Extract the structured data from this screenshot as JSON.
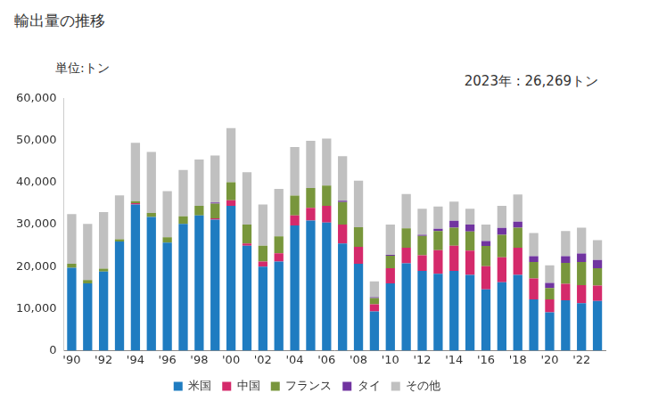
{
  "chart_data": {
    "type": "bar",
    "title": "輸出量の推移",
    "ylabel": "単位:トン",
    "annotations": [
      "2023年 : 26,269トン"
    ],
    "stacked": true,
    "grid": false,
    "legend": "bottom",
    "categories": [
      "'90",
      null,
      "'92",
      null,
      "'94",
      null,
      "'96",
      null,
      "'98",
      null,
      "'00",
      null,
      "'02",
      null,
      "'04",
      null,
      "'06",
      null,
      "'08",
      null,
      "'10",
      null,
      "'12",
      null,
      "'14",
      null,
      "'16",
      null,
      "'18",
      null,
      "'20",
      null,
      "'22",
      null
    ],
    "series": [
      {
        "name": "米国",
        "color": "#1f7cc1",
        "values": [
          19700,
          16000,
          18800,
          26000,
          34800,
          31800,
          25700,
          30200,
          32200,
          31200,
          34500,
          25000,
          20000,
          21200,
          29800,
          31000,
          30500,
          25500,
          20700,
          9300,
          16000,
          20800,
          19000,
          18300,
          19000,
          18000,
          14600,
          16300,
          18000,
          12200,
          9100,
          12000,
          11300,
          11800
        ]
      },
      {
        "name": "中国",
        "color": "#d42a6b",
        "values": [
          0,
          0,
          0,
          0,
          300,
          0,
          0,
          0,
          0,
          300,
          1300,
          500,
          1200,
          2000,
          2400,
          3000,
          4000,
          4500,
          4000,
          1700,
          3600,
          3700,
          3700,
          5600,
          6000,
          5800,
          5500,
          5900,
          6500,
          5000,
          3100,
          3900,
          4300,
          3700
        ]
      },
      {
        "name": "フランス",
        "color": "#78963c",
        "values": [
          1000,
          800,
          700,
          500,
          500,
          1000,
          1300,
          1800,
          2300,
          3500,
          4300,
          4500,
          3800,
          4000,
          4700,
          4700,
          4800,
          5400,
          4700,
          1500,
          3000,
          4600,
          4600,
          4600,
          4300,
          4600,
          4800,
          5400,
          4800,
          3900,
          2700,
          5000,
          5500,
          4100
        ]
      },
      {
        "name": "タイ",
        "color": "#7134a0",
        "values": [
          0,
          0,
          0,
          0,
          0,
          0,
          0,
          0,
          0,
          300,
          0,
          0,
          0,
          0,
          0,
          0,
          0,
          300,
          0,
          200,
          200,
          0,
          300,
          500,
          1600,
          1600,
          1200,
          1600,
          1400,
          1400,
          1200,
          1600,
          2000,
          2000
        ]
      },
      {
        "name": "その他",
        "color": "#c0c0c0",
        "values": [
          11800,
          13400,
          13500,
          10500,
          13900,
          14500,
          11000,
          11000,
          11000,
          11200,
          12900,
          12500,
          9800,
          11300,
          11600,
          11300,
          11200,
          10600,
          11100,
          3800,
          7200,
          8200,
          6200,
          5300,
          4600,
          3800,
          3900,
          5300,
          6500,
          5500,
          4200,
          6000,
          6200,
          4700
        ]
      }
    ],
    "ylim": [
      0,
      60000
    ],
    "yticks": [
      {
        "value": 0,
        "label": "0"
      },
      {
        "value": 10000,
        "label": "10,000"
      },
      {
        "value": 20000,
        "label": "20,000"
      },
      {
        "value": 30000,
        "label": "30,000"
      },
      {
        "value": 40000,
        "label": "40,000"
      },
      {
        "value": 50000,
        "label": "50,000"
      },
      {
        "value": 60000,
        "label": "60,000"
      }
    ]
  }
}
